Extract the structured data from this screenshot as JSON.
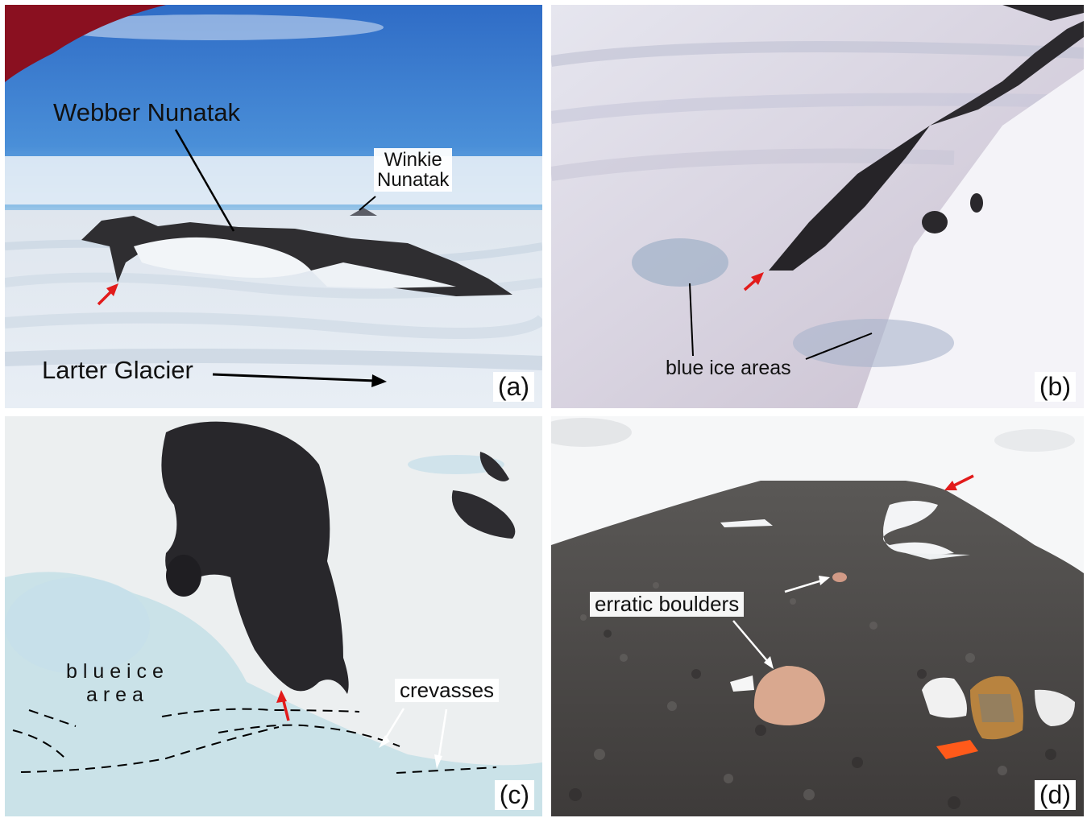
{
  "panels": {
    "a": {
      "tag": "(a)",
      "labels": {
        "webber": "Webber Nunatak",
        "winkie_line1": "Winkie",
        "winkie_line2": "Nunatak",
        "larter": "Larter Glacier"
      }
    },
    "b": {
      "tag": "(b)",
      "labels": {
        "blue_ice": "blue ice areas"
      }
    },
    "c": {
      "tag": "(c)",
      "labels": {
        "blue_ice_line1": "b l u e  i c e",
        "blue_ice_line2": "a r e a",
        "crevasses": "crevasses"
      }
    },
    "d": {
      "tag": "(d)",
      "labels": {
        "erratic": "erratic boulders"
      }
    }
  },
  "colors": {
    "sky": "#3d7fd0",
    "snow": "#eef2f6",
    "rock": "#2c2a2c",
    "blue_ice": "#bcd9e6",
    "arrow_red": "#e21b1b",
    "gravel": "#4f4b49",
    "boulder": "#d9a88f"
  }
}
